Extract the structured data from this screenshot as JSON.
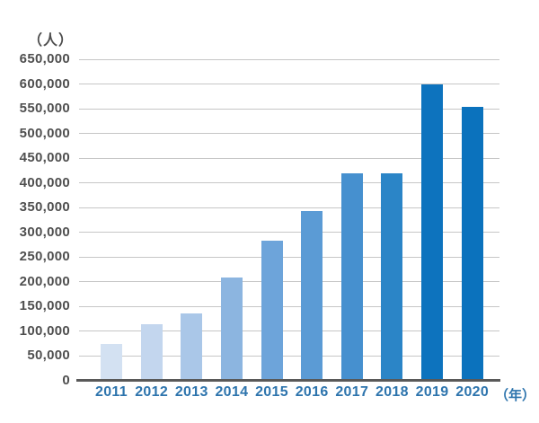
{
  "chart_data": {
    "type": "bar",
    "title": "",
    "unit_y_label": "（人）",
    "unit_x_label": "（年）",
    "categories": [
      "2011",
      "2012",
      "2013",
      "2014",
      "2015",
      "2016",
      "2017",
      "2018",
      "2019",
      "2020"
    ],
    "values": [
      75000,
      115000,
      137000,
      208000,
      284000,
      343000,
      420000,
      420000,
      600000,
      554000
    ],
    "bar_colors": [
      "#d3e1f2",
      "#c3d6ee",
      "#aac7e8",
      "#8cb5e0",
      "#6da4da",
      "#5b9bd5",
      "#4690cf",
      "#2b85c7",
      "#0d73be",
      "#0b72bd"
    ],
    "ylim": [
      0,
      650000
    ],
    "ytick_step": 50000,
    "ytick_labels": [
      "0",
      "50,000",
      "100,000",
      "150,000",
      "200,000",
      "250,000",
      "300,000",
      "350,000",
      "400,000",
      "450,000",
      "500,000",
      "550,000",
      "600,000",
      "650,000"
    ],
    "grid": true,
    "legend_position": "none",
    "colors": {
      "ytick_label": "#4f4f4f",
      "xtick_label": "#2d74ad",
      "gridline": "#c6c6c6",
      "axis_line": "#595959",
      "background": "#ffffff"
    }
  }
}
